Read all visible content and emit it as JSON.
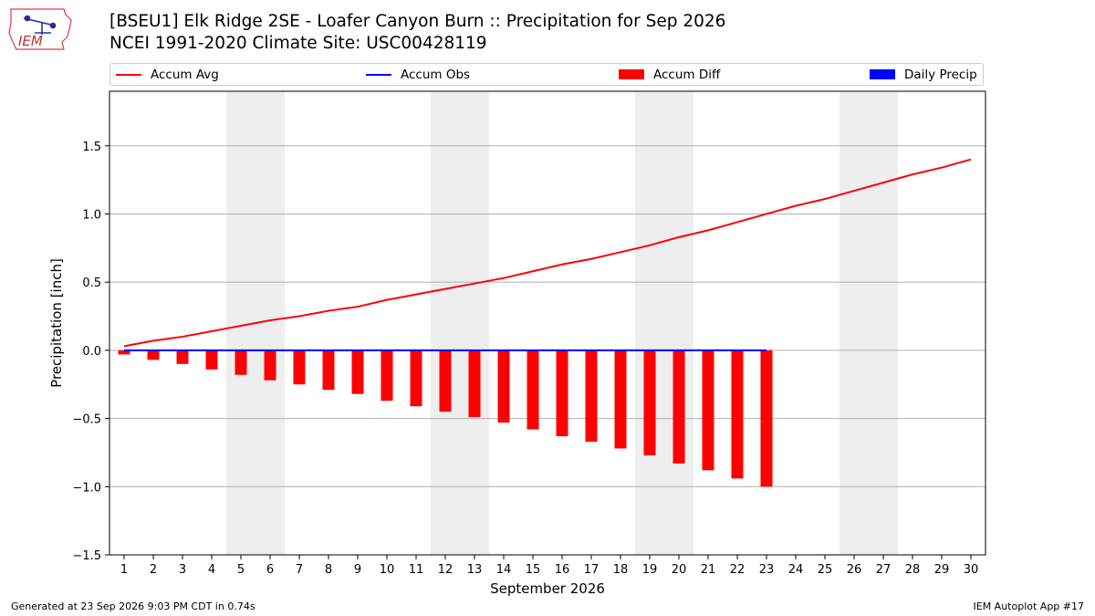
{
  "logo": {
    "text": "IEM"
  },
  "title": {
    "line1": "[BSEU1] Elk Ridge 2SE - Loafer Canyon Burn :: Precipitation for Sep 2026",
    "line2": "NCEI 1991-2020 Climate Site: USC00428119"
  },
  "legend": {
    "items": [
      {
        "label": "Accum Avg",
        "kind": "line",
        "color": "#ff0000"
      },
      {
        "label": "Accum Obs",
        "kind": "line",
        "color": "#0000ff"
      },
      {
        "label": "Accum Diff",
        "kind": "box",
        "color": "#ff0000"
      },
      {
        "label": "Daily Precip",
        "kind": "box",
        "color": "#0000ff"
      }
    ]
  },
  "footer": {
    "left": "Generated at 23 Sep 2026 9:03 PM CDT in 0.74s",
    "right": "IEM Autoplot App #17"
  },
  "chart_data": {
    "type": "bar",
    "xlabel": "September 2026",
    "ylabel": "Precipitation [inch]",
    "ylim": [
      -1.5,
      1.9
    ],
    "yticks": [
      1.5,
      1.0,
      0.5,
      0.0,
      -0.5,
      -1.0,
      -1.5
    ],
    "ytick_labels": [
      "1.5",
      "1.0",
      "0.5",
      "0.0",
      "−0.5",
      "−1.0",
      "−1.5"
    ],
    "x": [
      1,
      2,
      3,
      4,
      5,
      6,
      7,
      8,
      9,
      10,
      11,
      12,
      13,
      14,
      15,
      16,
      17,
      18,
      19,
      20,
      21,
      22,
      23,
      24,
      25,
      26,
      27,
      28,
      29,
      30
    ],
    "grid": "horizontal",
    "weekend_shading": [
      [
        5,
        6
      ],
      [
        12,
        13
      ],
      [
        19,
        20
      ],
      [
        26,
        27
      ]
    ],
    "shading_color": "#eeeeee",
    "series": [
      {
        "name": "Accum Avg",
        "kind": "line",
        "color": "#ff0000",
        "x": [
          1,
          2,
          3,
          4,
          5,
          6,
          7,
          8,
          9,
          10,
          11,
          12,
          13,
          14,
          15,
          16,
          17,
          18,
          19,
          20,
          21,
          22,
          23,
          24,
          25,
          26,
          27,
          28,
          29,
          30
        ],
        "values": [
          0.03,
          0.07,
          0.1,
          0.14,
          0.18,
          0.22,
          0.25,
          0.29,
          0.32,
          0.37,
          0.41,
          0.45,
          0.49,
          0.53,
          0.58,
          0.63,
          0.67,
          0.72,
          0.77,
          0.83,
          0.88,
          0.94,
          1.0,
          1.06,
          1.11,
          1.17,
          1.23,
          1.29,
          1.34,
          1.4
        ]
      },
      {
        "name": "Accum Obs",
        "kind": "line",
        "color": "#0000ff",
        "x": [
          1,
          2,
          3,
          4,
          5,
          6,
          7,
          8,
          9,
          10,
          11,
          12,
          13,
          14,
          15,
          16,
          17,
          18,
          19,
          20,
          21,
          22,
          23
        ],
        "values": [
          0,
          0,
          0,
          0,
          0,
          0,
          0,
          0,
          0,
          0,
          0,
          0,
          0,
          0,
          0,
          0,
          0,
          0,
          0,
          0,
          0,
          0,
          0
        ]
      },
      {
        "name": "Accum Diff",
        "kind": "bar",
        "color": "#ff0000",
        "x": [
          1,
          2,
          3,
          4,
          5,
          6,
          7,
          8,
          9,
          10,
          11,
          12,
          13,
          14,
          15,
          16,
          17,
          18,
          19,
          20,
          21,
          22,
          23
        ],
        "values": [
          -0.03,
          -0.07,
          -0.1,
          -0.14,
          -0.18,
          -0.22,
          -0.25,
          -0.29,
          -0.32,
          -0.37,
          -0.41,
          -0.45,
          -0.49,
          -0.53,
          -0.58,
          -0.63,
          -0.67,
          -0.72,
          -0.77,
          -0.83,
          -0.88,
          -0.94,
          -1.0
        ]
      },
      {
        "name": "Daily Precip",
        "kind": "bar",
        "color": "#0000ff",
        "x": [
          1,
          2,
          3,
          4,
          5,
          6,
          7,
          8,
          9,
          10,
          11,
          12,
          13,
          14,
          15,
          16,
          17,
          18,
          19,
          20,
          21,
          22,
          23
        ],
        "values": [
          0,
          0,
          0,
          0,
          0,
          0,
          0,
          0,
          0,
          0,
          0,
          0,
          0,
          0,
          0,
          0,
          0,
          0,
          0,
          0,
          0,
          0,
          0
        ]
      }
    ]
  }
}
